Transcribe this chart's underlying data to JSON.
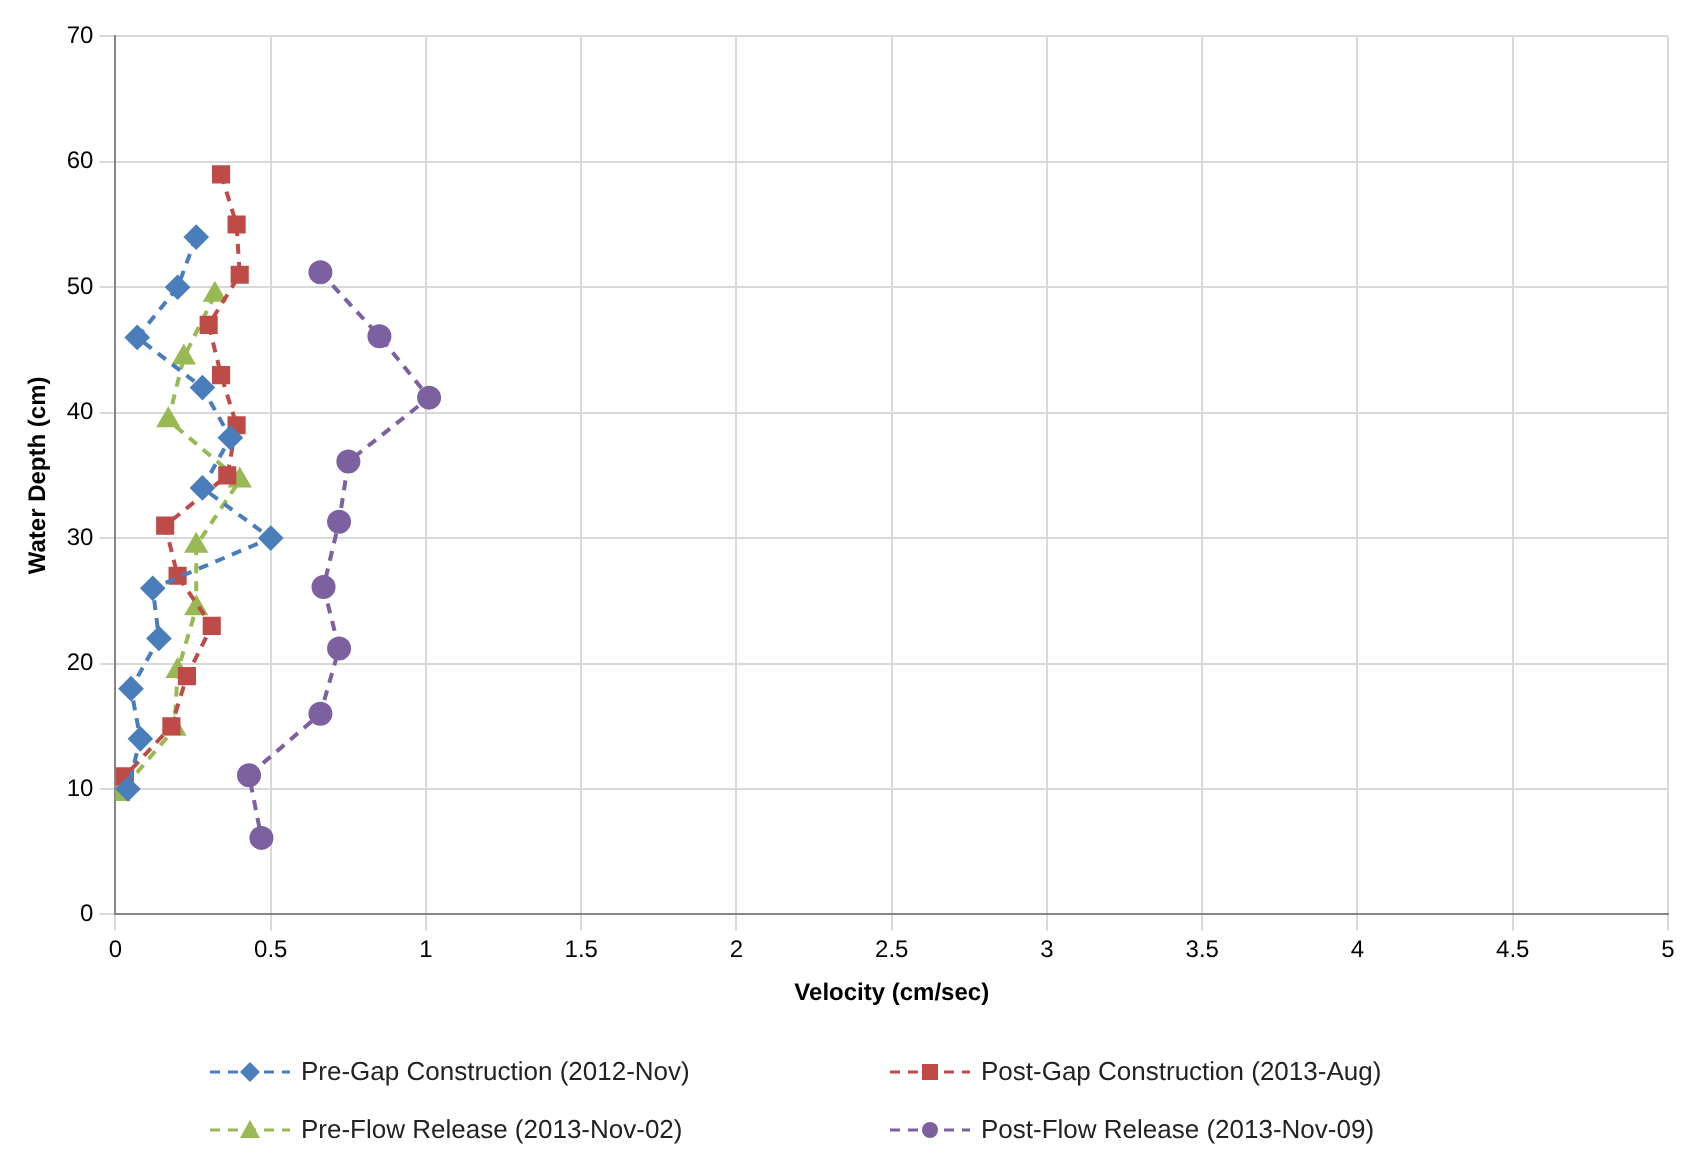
{
  "chart_data": {
    "type": "line",
    "xlabel": "Velocity (cm/sec)",
    "ylabel": "Water Depth (cm)",
    "xlim": [
      0,
      5
    ],
    "xticks": [
      0,
      0.5,
      1,
      1.5,
      2,
      2.5,
      3,
      3.5,
      4,
      4.5,
      5
    ],
    "ylim": [
      0,
      70
    ],
    "yticks": [
      0,
      10,
      20,
      30,
      40,
      50,
      60,
      70
    ],
    "grid": true,
    "legend": "bottom",
    "line_style": "dashed",
    "series": [
      {
        "name": "Pre-Gap Construction (2012-Nov)",
        "color": "#4a7ebb",
        "marker": "diamond",
        "x": [
          0.26,
          0.2,
          0.07,
          0.28,
          0.37,
          0.28,
          0.5,
          0.12,
          0.14,
          0.05,
          0.08,
          0.04
        ],
        "values": [
          54,
          50,
          46,
          42,
          38,
          34,
          30,
          26,
          22,
          18,
          14,
          10
        ]
      },
      {
        "name": "Post-Gap Construction (2013-Aug)",
        "color": "#be4b48",
        "marker": "square",
        "x": [
          0.34,
          0.39,
          0.4,
          0.3,
          0.34,
          0.39,
          0.36,
          0.16,
          0.2,
          0.31,
          0.23,
          0.18,
          0.03
        ],
        "values": [
          59,
          55,
          51,
          47,
          43,
          39,
          35,
          31,
          27,
          23,
          19,
          15,
          11
        ]
      },
      {
        "name": "Pre-Flow Release (2013-Nov-02)",
        "color": "#98b954",
        "marker": "triangle",
        "x": [
          0.32,
          0.22,
          0.17,
          0.4,
          0.26,
          0.26,
          0.2,
          0.19,
          0.01
        ],
        "values": [
          49.4,
          44.4,
          39.4,
          34.6,
          29.4,
          24.4,
          19.4,
          14.8,
          9.6
        ]
      },
      {
        "name": "Post-Flow Release (2013-Nov-09)",
        "color": "#7d60a0",
        "marker": "circle",
        "x": [
          0.66,
          0.85,
          1.01,
          0.75,
          0.72,
          0.67,
          0.72,
          0.66,
          0.43,
          0.47
        ],
        "values": [
          51.2,
          46.1,
          41.2,
          36.1,
          31.3,
          26.1,
          21.2,
          16,
          11.1,
          6.1
        ]
      }
    ]
  }
}
